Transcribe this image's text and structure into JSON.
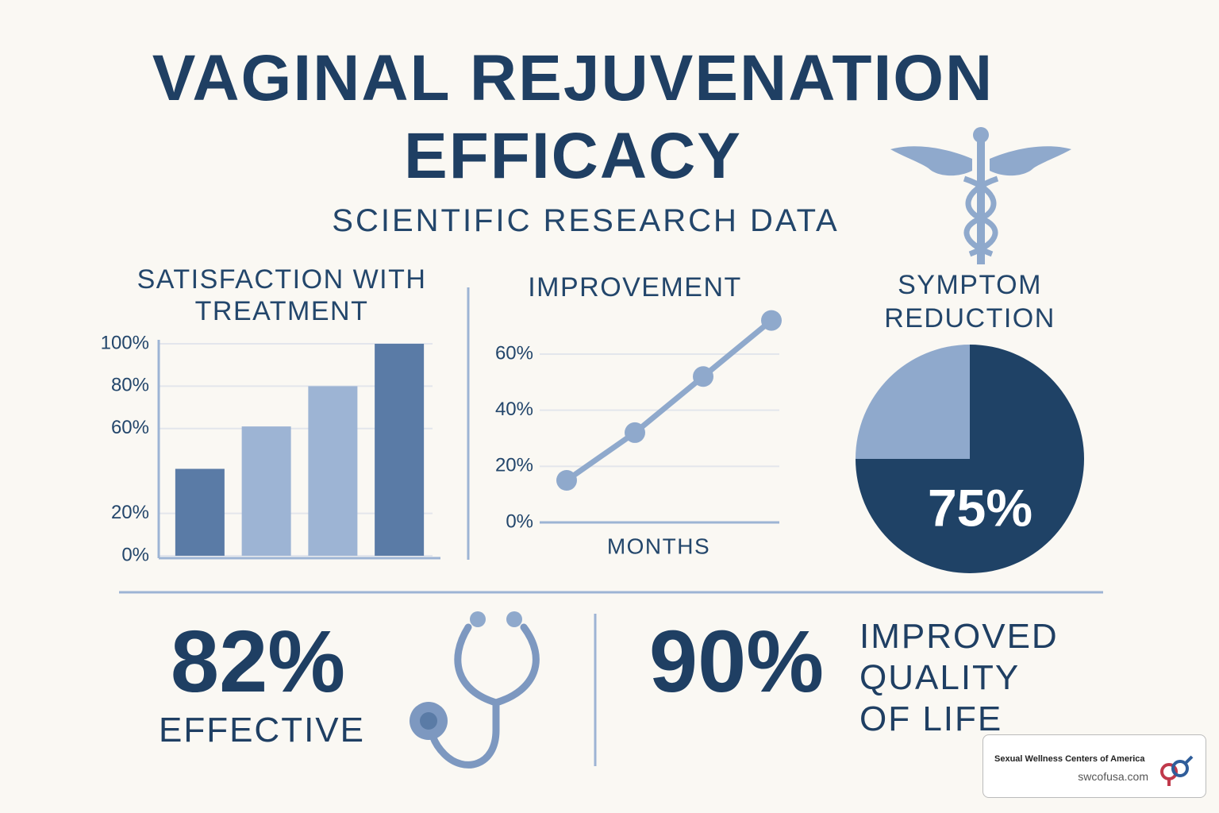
{
  "title": "VAGINAL REJUVENATION EFFICACY",
  "subtitle": "SCIENTIFIC RESEARCH DATA",
  "chart_data": [
    {
      "type": "bar",
      "title": "SATISFACTION WITH TREATMENT",
      "categories": [
        null,
        null,
        null,
        null
      ],
      "values": [
        41,
        61,
        80,
        100
      ],
      "colors": [
        "#5a7ba6",
        "#9db4d4",
        "#9db4d4",
        "#5a7ba6"
      ],
      "ylim": [
        0,
        100
      ],
      "yticks": [
        {
          "value": 0,
          "label": "0%"
        },
        {
          "value": 20,
          "label": "20%"
        },
        {
          "value": 60,
          "label": "60%"
        },
        {
          "value": 80,
          "label": "80%"
        },
        {
          "value": 100,
          "label": "100%"
        }
      ],
      "grid": true
    },
    {
      "type": "line",
      "title": "IMPROVEMENT",
      "xlabel": "MONTHS",
      "categories": [
        null,
        null,
        null,
        null
      ],
      "values": [
        15,
        32,
        52,
        72
      ],
      "color": "#8fa9cc",
      "ylim": [
        0,
        75
      ],
      "yticks": [
        {
          "value": 0,
          "label": "0%"
        },
        {
          "value": 20,
          "label": "20%"
        },
        {
          "value": 40,
          "label": "40%"
        },
        {
          "value": 60,
          "label": "60%"
        }
      ],
      "grid": true
    },
    {
      "type": "pie",
      "title": "SYMPTOM REDUCTION",
      "values": [
        75,
        25
      ],
      "value_labels": [
        "75%",
        null
      ],
      "colors": [
        "#1f4266",
        "#8fa9cc"
      ]
    }
  ],
  "stats": [
    {
      "value": "82%",
      "label": [
        "EFFECTIVE"
      ]
    },
    {
      "value": "90%",
      "label": [
        "IMPROVED",
        "QUALITY",
        "OF LIFE"
      ]
    }
  ],
  "badge": {
    "name": "Sexual Wellness Centers of America",
    "url": "swcofusa.com"
  }
}
